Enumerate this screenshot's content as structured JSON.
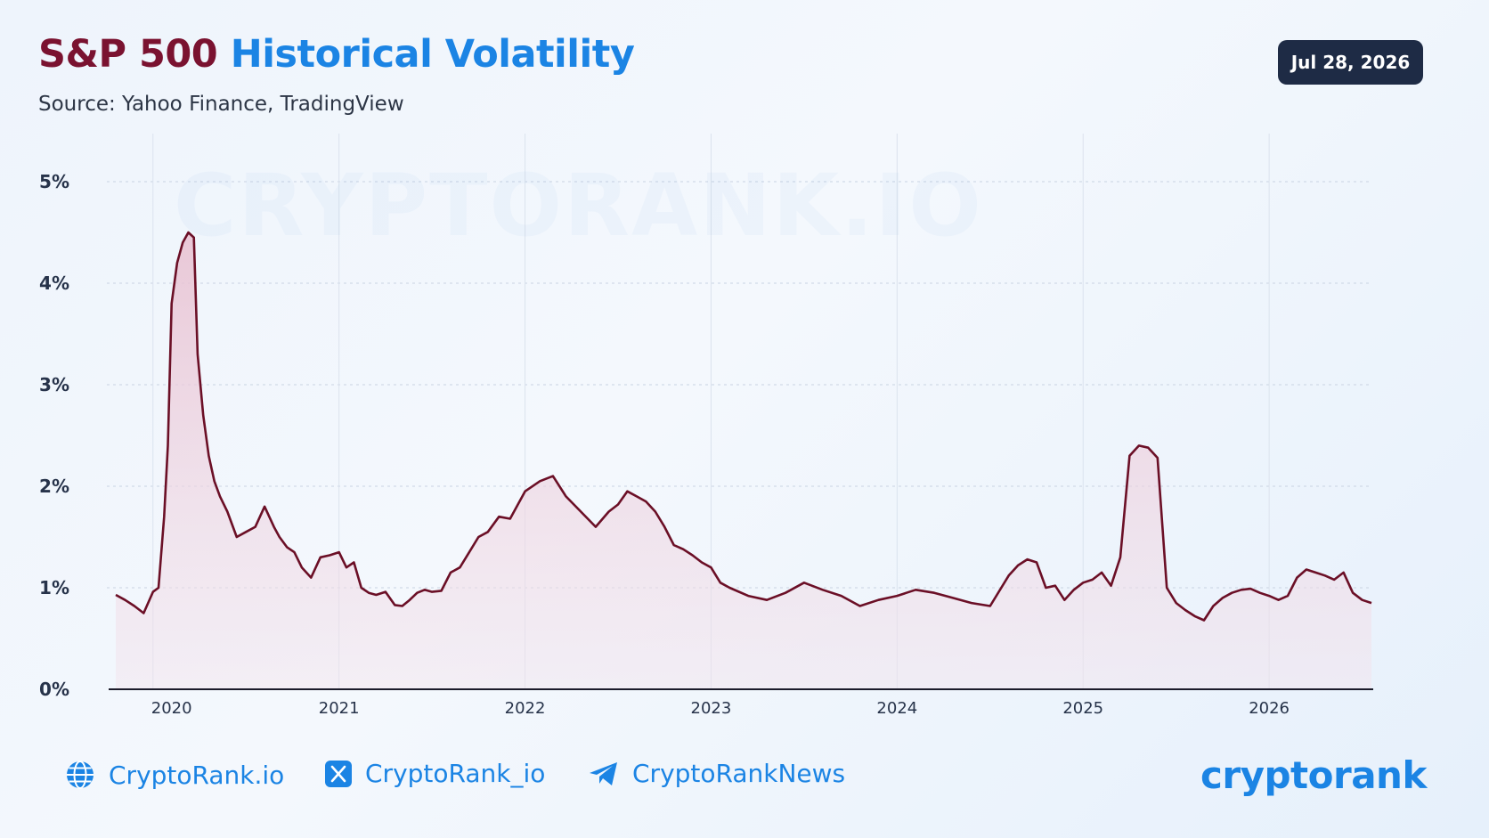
{
  "header": {
    "title_part1": "S&P 500",
    "title_part2": "Historical Volatility",
    "subtitle": "Source: Yahoo Finance, TradingView",
    "date": "Jul 28, 2026"
  },
  "watermark": "CRYPTORANK.IO",
  "footer": {
    "links": [
      {
        "icon": "globe-icon",
        "label": "CryptoRank.io"
      },
      {
        "icon": "x-logo-icon",
        "label": "CryptoRank_io"
      },
      {
        "icon": "telegram-icon",
        "label": "CryptoRankNews"
      }
    ],
    "brand": "cryptorank"
  },
  "colors": {
    "title_dark": "#7a1230",
    "title_blue": "#1b84e4",
    "line": "#6b0f26",
    "area_top": "#e8bfd0",
    "badge_bg": "#1e2b45"
  },
  "chart_data": {
    "type": "area",
    "title": "S&P 500 Historical Volatility",
    "xlabel": "",
    "ylabel": "",
    "ylim": [
      0,
      5
    ],
    "yticks": [
      "0%",
      "1%",
      "2%",
      "3%",
      "4%",
      "5%"
    ],
    "xticks": [
      "2020",
      "2021",
      "2022",
      "2023",
      "2024",
      "2025",
      "2026"
    ],
    "xticks_pos": [
      2020.1,
      2021.0,
      2022.0,
      2023.0,
      2024.0,
      2025.0,
      2026.0
    ],
    "grid": true,
    "legend": "none",
    "series": [
      {
        "values_unit": "percent",
        "x": [
          2019.8,
          2019.85,
          2019.9,
          2019.95,
          2020.0,
          2020.03,
          2020.06,
          2020.08,
          2020.1,
          2020.13,
          2020.16,
          2020.19,
          2020.22,
          2020.24,
          2020.27,
          2020.3,
          2020.33,
          2020.36,
          2020.4,
          2020.45,
          2020.5,
          2020.55,
          2020.6,
          2020.65,
          2020.68,
          2020.72,
          2020.76,
          2020.8,
          2020.85,
          2020.9,
          2020.95,
          2021.0,
          2021.04,
          2021.08,
          2021.12,
          2021.16,
          2021.2,
          2021.25,
          2021.3,
          2021.34,
          2021.38,
          2021.42,
          2021.46,
          2021.5,
          2021.55,
          2021.6,
          2021.65,
          2021.7,
          2021.75,
          2021.8,
          2021.86,
          2021.92,
          2022.0,
          2022.08,
          2022.15,
          2022.22,
          2022.3,
          2022.38,
          2022.45,
          2022.5,
          2022.55,
          2022.6,
          2022.65,
          2022.7,
          2022.75,
          2022.8,
          2022.85,
          2022.9,
          2022.95,
          2023.0,
          2023.05,
          2023.1,
          2023.2,
          2023.3,
          2023.4,
          2023.5,
          2023.6,
          2023.7,
          2023.8,
          2023.9,
          2024.0,
          2024.05,
          2024.1,
          2024.2,
          2024.3,
          2024.4,
          2024.5,
          2024.6,
          2024.65,
          2024.7,
          2024.75,
          2024.8,
          2024.85,
          2024.9,
          2024.95,
          2025.0,
          2025.05,
          2025.1,
          2025.15,
          2025.2,
          2025.25,
          2025.3,
          2025.35,
          2025.4,
          2025.45,
          2025.5,
          2025.55,
          2025.6,
          2025.65,
          2025.7,
          2025.75,
          2025.8,
          2025.85,
          2025.9,
          2025.95,
          2026.0,
          2026.05,
          2026.1,
          2026.15,
          2026.2,
          2026.25,
          2026.3,
          2026.35,
          2026.4,
          2026.45,
          2026.5,
          2026.55
        ],
        "values": [
          0.93,
          0.88,
          0.82,
          0.75,
          0.96,
          1.0,
          1.7,
          2.4,
          3.8,
          4.2,
          4.4,
          4.5,
          4.45,
          3.3,
          2.7,
          2.3,
          2.05,
          1.9,
          1.75,
          1.5,
          1.55,
          1.6,
          1.8,
          1.6,
          1.5,
          1.4,
          1.35,
          1.2,
          1.1,
          1.3,
          1.32,
          1.35,
          1.2,
          1.25,
          1.0,
          0.95,
          0.93,
          0.96,
          0.83,
          0.82,
          0.88,
          0.95,
          0.98,
          0.96,
          0.97,
          1.15,
          1.2,
          1.35,
          1.5,
          1.55,
          1.7,
          1.68,
          1.95,
          2.05,
          2.1,
          1.9,
          1.75,
          1.6,
          1.75,
          1.82,
          1.95,
          1.9,
          1.85,
          1.75,
          1.6,
          1.42,
          1.38,
          1.32,
          1.25,
          1.2,
          1.05,
          1.0,
          0.92,
          0.88,
          0.95,
          1.05,
          0.98,
          0.92,
          0.82,
          0.88,
          0.92,
          0.95,
          0.98,
          0.95,
          0.9,
          0.85,
          0.82,
          1.12,
          1.22,
          1.28,
          1.25,
          1.0,
          1.02,
          0.88,
          0.98,
          1.05,
          1.08,
          1.15,
          1.02,
          1.3,
          2.3,
          2.4,
          2.38,
          2.28,
          1.0,
          0.85,
          0.78,
          0.72,
          0.68,
          0.82,
          0.9,
          0.95,
          0.98,
          0.99,
          0.95,
          0.92,
          0.88,
          0.92,
          1.1,
          1.18,
          1.15,
          1.12,
          1.08,
          1.15,
          0.95,
          0.88,
          0.85
        ]
      }
    ]
  }
}
